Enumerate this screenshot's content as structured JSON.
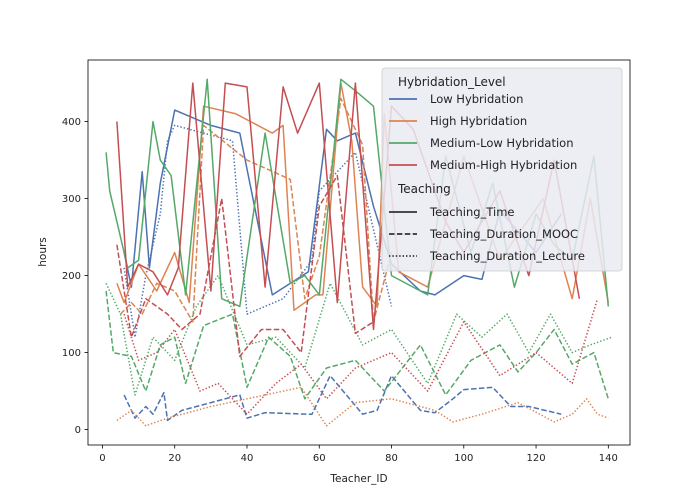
{
  "chart_data": {
    "type": "line",
    "title": "",
    "xlabel": "Teacher_ID",
    "ylabel": "hours",
    "xlim": [
      -4,
      146
    ],
    "ylim": [
      -20,
      480
    ],
    "xticks": [
      0,
      20,
      40,
      60,
      80,
      100,
      120,
      140
    ],
    "yticks": [
      0,
      100,
      200,
      300,
      400
    ],
    "grid": false,
    "legend": {
      "placement": "top-right",
      "hue_title": "Hybridation_Level",
      "style_title": "Teaching",
      "hue_entries": [
        {
          "label": "Low Hybridation",
          "color": "#4c72b0"
        },
        {
          "label": "High Hybridation",
          "color": "#dd8452"
        },
        {
          "label": "Medium-Low Hybridation",
          "color": "#55a868"
        },
        {
          "label": "Medium-High Hybridation",
          "color": "#c44e52"
        }
      ],
      "style_entries": [
        {
          "label": "Teaching_Time",
          "dash": "solid"
        },
        {
          "label": "Teaching_Duration_MOOC",
          "dash": "dashed"
        },
        {
          "label": "Teaching_Duration_Lecture",
          "dash": "dotted"
        }
      ]
    },
    "series": [
      {
        "name": "Low Hybridation",
        "measure": "Teaching_Time",
        "color": "#4c72b0",
        "x": [
          6,
          8,
          11,
          13,
          16,
          20,
          30,
          38,
          47,
          57,
          62,
          65,
          70,
          75,
          80,
          88,
          92,
          100,
          105,
          110,
          120,
          127
        ],
        "y": [
          230,
          185,
          335,
          210,
          320,
          415,
          395,
          385,
          175,
          205,
          390,
          375,
          385,
          290,
          215,
          180,
          175,
          200,
          195,
          285,
          230,
          280
        ]
      },
      {
        "name": "Low Hybridation",
        "measure": "Teaching_Duration_MOOC",
        "color": "#4c72b0",
        "x": [
          6,
          9,
          12,
          14,
          17,
          18,
          22,
          30,
          38,
          40,
          45,
          57,
          58,
          63,
          72,
          76,
          80,
          88,
          92,
          97,
          100,
          108,
          113,
          118,
          127
        ],
        "y": [
          45,
          15,
          30,
          20,
          48,
          12,
          25,
          35,
          45,
          15,
          22,
          20,
          20,
          70,
          20,
          25,
          70,
          25,
          22,
          40,
          52,
          55,
          30,
          30,
          20
        ]
      },
      {
        "name": "Low Hybridation",
        "measure": "Teaching_Duration_Lecture",
        "color": "#4c72b0",
        "x": [
          6,
          9,
          12,
          16,
          18,
          20,
          36,
          40,
          50,
          58,
          60,
          70,
          80
        ],
        "y": [
          210,
          120,
          200,
          280,
          375,
          395,
          375,
          150,
          170,
          220,
          310,
          360,
          160
        ]
      },
      {
        "name": "High Hybridation",
        "measure": "Teaching_Time",
        "color": "#dd8452",
        "x": [
          4,
          6,
          10,
          15,
          20,
          24,
          28,
          37,
          47,
          50,
          53,
          59,
          61,
          66,
          69,
          72,
          76,
          78,
          82,
          90,
          100,
          110,
          122,
          130,
          135,
          140
        ],
        "y": [
          190,
          165,
          215,
          180,
          230,
          165,
          420,
          410,
          385,
          395,
          155,
          175,
          175,
          450,
          375,
          185,
          160,
          410,
          205,
          185,
          355,
          220,
          300,
          170,
          300,
          165
        ]
      },
      {
        "name": "High Hybridation",
        "measure": "Teaching_Duration_MOOC",
        "color": "#dd8452",
        "x": [
          5,
          8,
          11,
          15,
          20,
          25,
          28,
          40,
          52,
          56,
          60,
          66,
          72,
          75,
          80
        ],
        "y": [
          150,
          165,
          150,
          190,
          180,
          140,
          395,
          350,
          325,
          170,
          225,
          430,
          370,
          140,
          230
        ]
      },
      {
        "name": "High Hybridation",
        "measure": "Teaching_Duration_Lecture",
        "color": "#dd8452",
        "x": [
          4,
          8,
          12,
          18,
          30,
          40,
          55,
          62,
          70,
          80,
          92,
          97,
          105,
          115,
          125,
          130,
          134,
          137,
          140
        ],
        "y": [
          12,
          25,
          5,
          15,
          30,
          40,
          55,
          5,
          35,
          40,
          25,
          10,
          20,
          35,
          10,
          20,
          40,
          20,
          15
        ]
      },
      {
        "name": "Medium-Low Hybridation",
        "measure": "Teaching_Time",
        "color": "#55a868",
        "x": [
          1,
          2,
          7,
          10,
          14,
          16,
          19,
          23,
          29,
          33,
          38,
          45,
          52,
          56,
          60,
          66,
          70,
          75,
          80,
          90,
          95,
          102,
          108,
          114,
          120,
          125,
          130,
          136,
          140
        ],
        "y": [
          360,
          310,
          210,
          220,
          400,
          350,
          330,
          175,
          455,
          170,
          160,
          385,
          190,
          200,
          175,
          455,
          440,
          420,
          200,
          175,
          355,
          230,
          320,
          185,
          280,
          240,
          220,
          355,
          160
        ]
      },
      {
        "name": "Medium-Low Hybridation",
        "measure": "Teaching_Duration_MOOC",
        "color": "#55a868",
        "x": [
          1,
          3,
          8,
          12,
          16,
          20,
          23,
          28,
          36,
          40,
          46,
          52,
          56,
          62,
          70,
          78,
          88,
          95,
          102,
          110,
          115,
          120,
          125,
          130,
          136,
          140
        ],
        "y": [
          180,
          100,
          95,
          50,
          110,
          120,
          60,
          135,
          150,
          55,
          120,
          95,
          40,
          80,
          90,
          50,
          110,
          45,
          90,
          110,
          75,
          100,
          130,
          85,
          100,
          40
        ]
      },
      {
        "name": "Medium-Low Hybridation",
        "measure": "Teaching_Duration_Lecture",
        "color": "#55a868",
        "x": [
          1,
          5,
          9,
          14,
          20,
          26,
          32,
          40,
          48,
          56,
          63,
          72,
          80,
          90,
          98,
          105,
          112,
          118,
          124,
          130,
          135,
          141
        ],
        "y": [
          190,
          150,
          45,
          120,
          90,
          160,
          200,
          110,
          120,
          80,
          190,
          110,
          130,
          60,
          150,
          120,
          150,
          100,
          150,
          100,
          110,
          120
        ]
      },
      {
        "name": "Medium-High Hybridation",
        "measure": "Teaching_Time",
        "color": "#c44e52",
        "x": [
          4,
          7,
          10,
          14,
          18,
          21,
          25,
          30,
          34,
          40,
          45,
          50,
          54,
          60,
          65,
          70,
          75,
          80,
          86,
          95,
          100,
          110,
          118,
          125,
          132
        ],
        "y": [
          400,
          185,
          215,
          205,
          175,
          210,
          450,
          180,
          450,
          445,
          185,
          445,
          385,
          450,
          165,
          450,
          130,
          420,
          390,
          270,
          230,
          310,
          200,
          350,
          170
        ]
      },
      {
        "name": "Medium-High Hybridation",
        "measure": "Teaching_Duration_MOOC",
        "color": "#c44e52",
        "x": [
          4,
          8,
          12,
          18,
          22,
          27,
          33,
          38,
          44,
          50,
          55,
          60,
          65,
          70,
          75
        ],
        "y": [
          240,
          120,
          170,
          150,
          130,
          150,
          300,
          95,
          130,
          130,
          100,
          290,
          330,
          125,
          140
        ]
      },
      {
        "name": "Medium-High Hybridation",
        "measure": "Teaching_Duration_Lecture",
        "color": "#c44e52",
        "x": [
          6,
          10,
          15,
          20,
          27,
          32,
          40,
          48,
          55,
          62,
          70,
          80,
          90,
          100,
          110,
          120,
          130,
          137
        ],
        "y": [
          150,
          90,
          100,
          130,
          50,
          60,
          20,
          60,
          85,
          40,
          80,
          100,
          50,
          140,
          70,
          100,
          60,
          170
        ]
      }
    ]
  }
}
